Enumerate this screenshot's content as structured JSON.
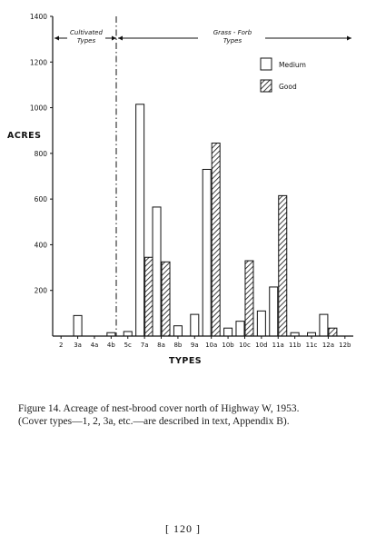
{
  "chart_data": {
    "type": "bar",
    "ylabel": "ACRES",
    "xlabel": "TYPES",
    "ylim": [
      0,
      1400
    ],
    "y_ticks": [
      "200",
      "400",
      "600",
      "800",
      "1000",
      "1200",
      "1400"
    ],
    "categories": [
      "2",
      "3a",
      "4a",
      "4b",
      "5c",
      "7a",
      "8a",
      "8b",
      "9a",
      "10a",
      "10b",
      "10c",
      "10d",
      "11a",
      "11b",
      "11c",
      "12a",
      "12b"
    ],
    "series": [
      {
        "name": "Medium",
        "values": [
          0,
          90,
          0,
          15,
          20,
          1015,
          565,
          45,
          95,
          730,
          35,
          65,
          110,
          215,
          15,
          15,
          95,
          0
        ]
      },
      {
        "name": "Good",
        "values": [
          0,
          0,
          0,
          0,
          0,
          345,
          325,
          0,
          0,
          845,
          0,
          330,
          0,
          615,
          0,
          0,
          35,
          0
        ]
      }
    ],
    "groups": [
      {
        "label_line1": "Cultivated",
        "label_line2": "Types"
      },
      {
        "label_line1": "Grass - Forb",
        "label_line2": "Types"
      }
    ],
    "legend_position": "top-right",
    "grid": false
  },
  "caption": {
    "line1": "Figure 14. Acreage of nest-brood cover north of Highway W, 1953.",
    "line2": "(Cover types—1, 2, 3a, etc.—are described in text, Appendix B)."
  },
  "page_number": "[ 120 ]"
}
